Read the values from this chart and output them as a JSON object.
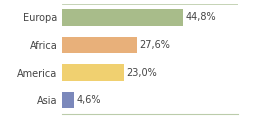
{
  "categories": [
    "Europa",
    "Africa",
    "America",
    "Asia"
  ],
  "values": [
    44.8,
    27.6,
    23.0,
    4.6
  ],
  "labels": [
    "44,8%",
    "27,6%",
    "23,0%",
    "4,6%"
  ],
  "bar_colors": [
    "#a8bc8a",
    "#e8b07a",
    "#f0d070",
    "#7b88bb"
  ],
  "background_color": "#ffffff",
  "xlim": [
    0,
    65
  ],
  "bar_height": 0.6,
  "label_fontsize": 7,
  "category_fontsize": 7
}
